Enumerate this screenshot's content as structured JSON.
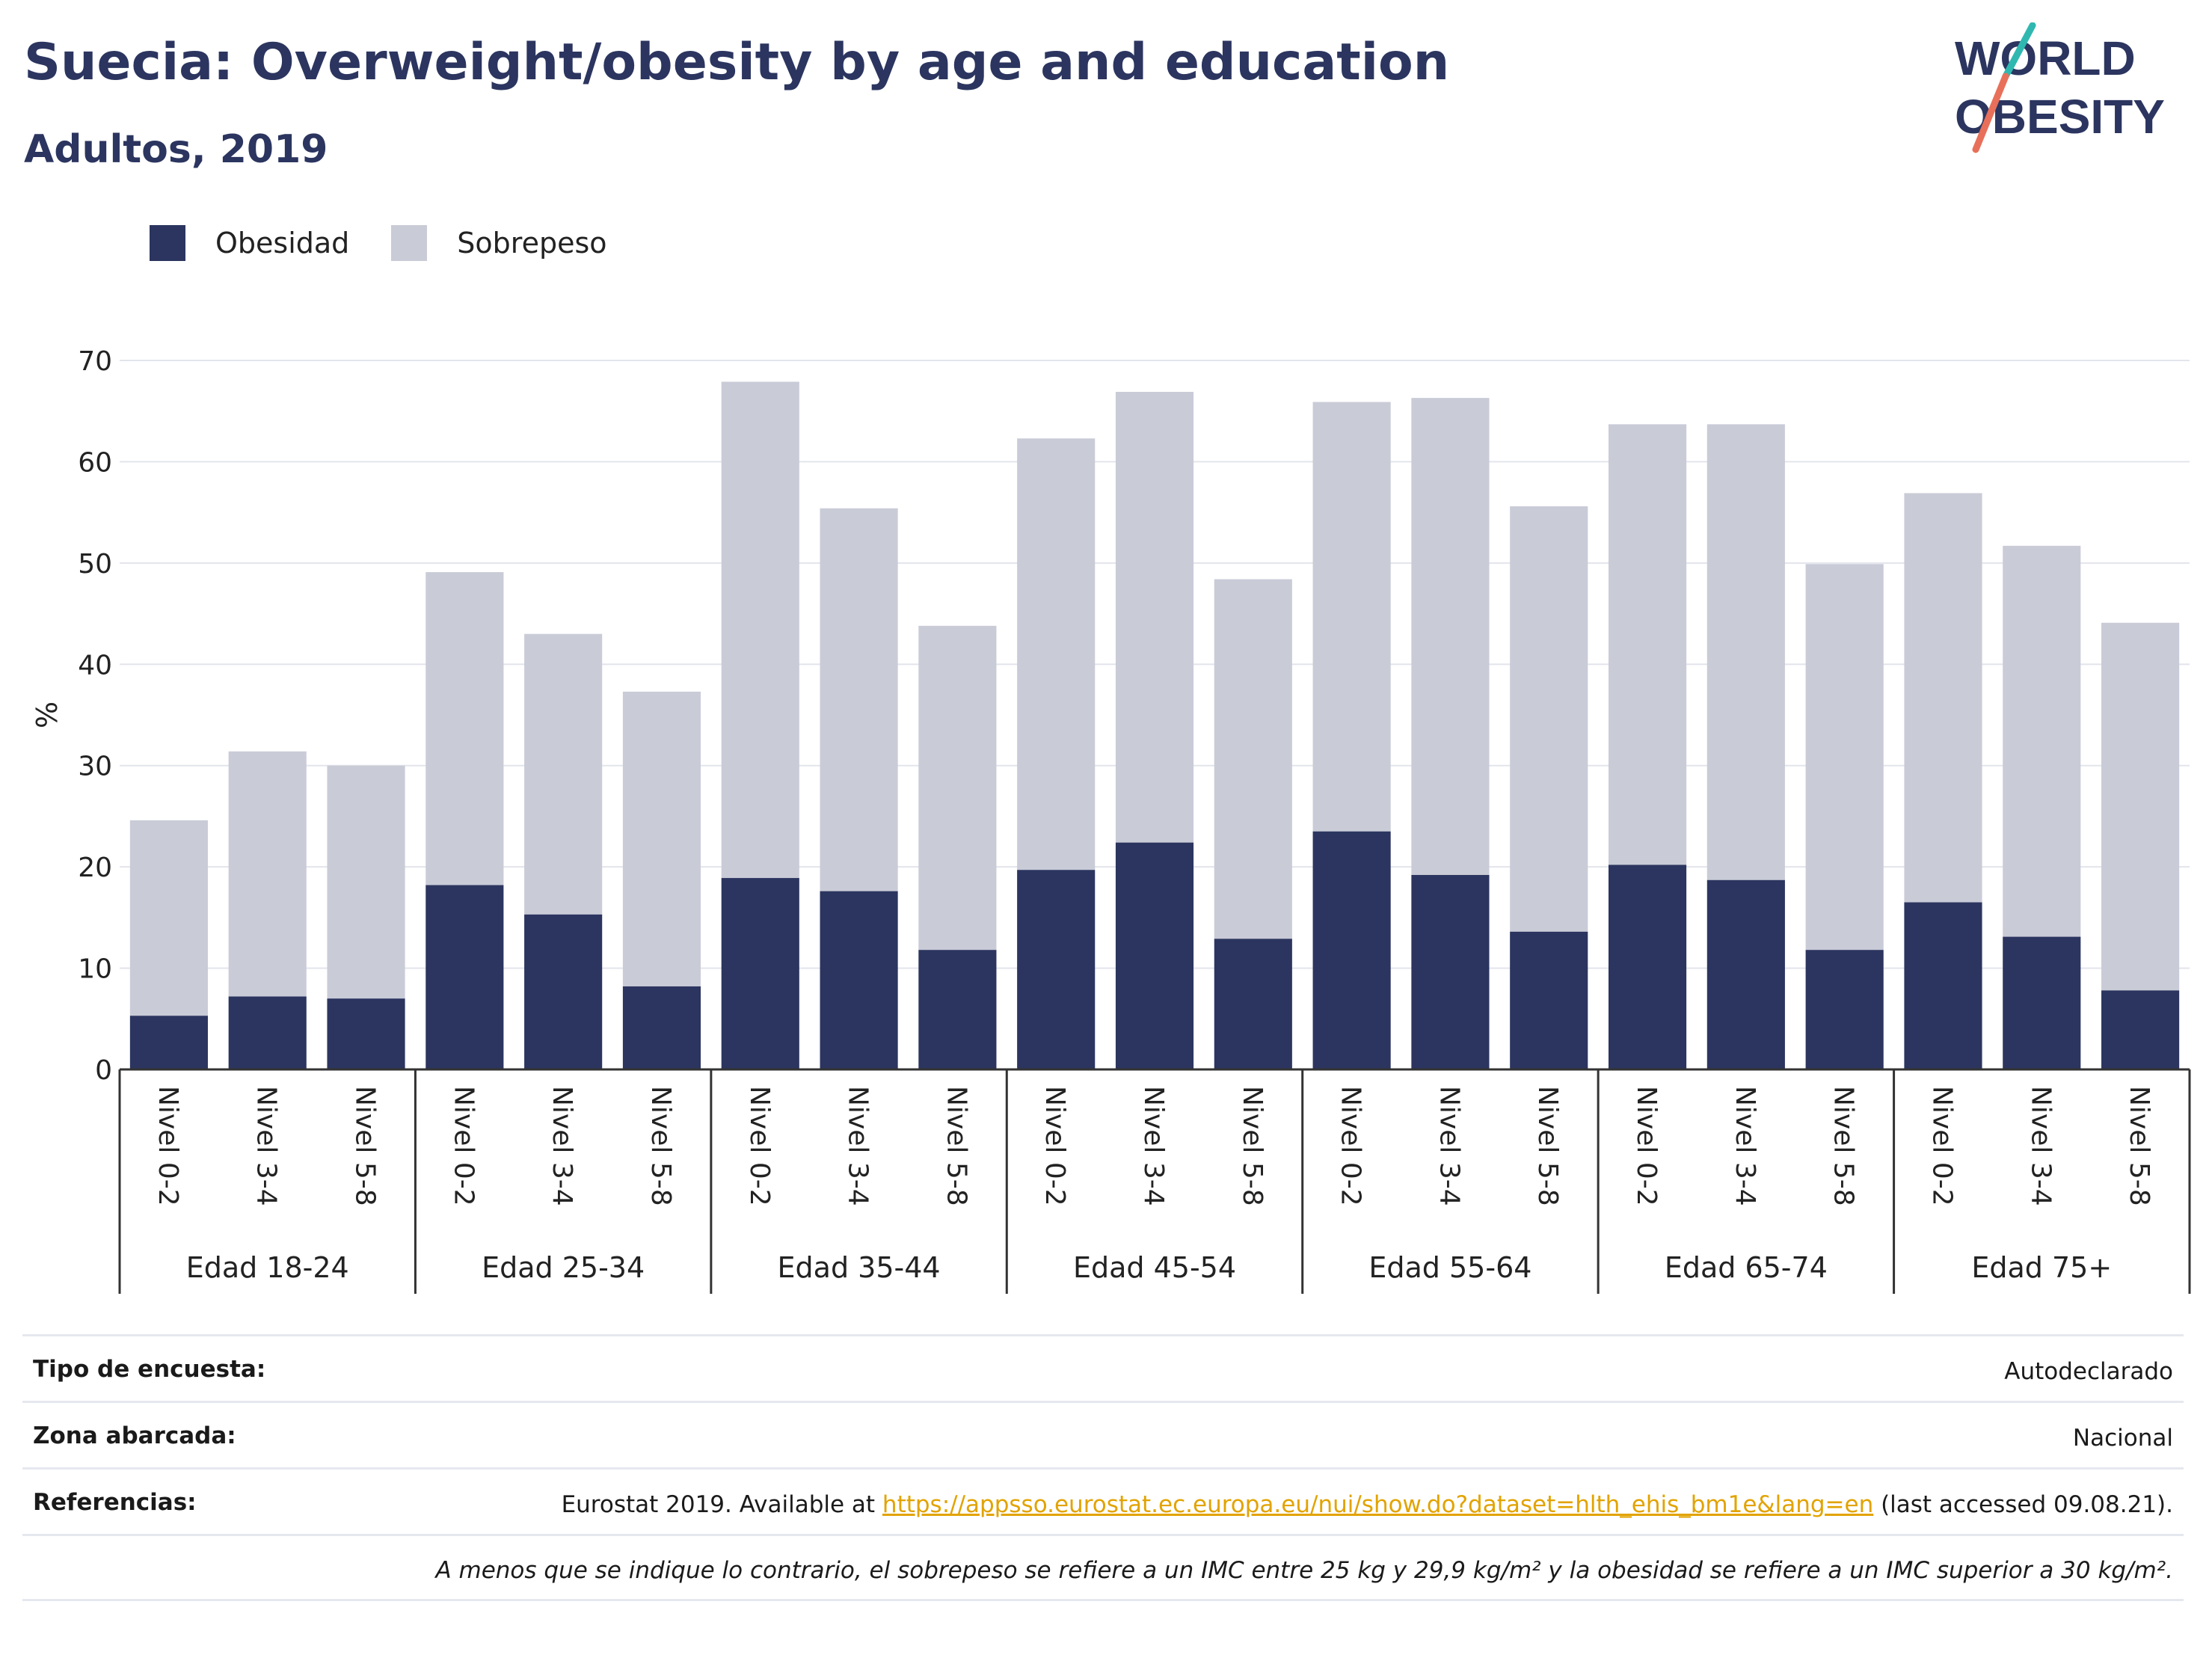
{
  "title": "Suecia: Overweight/obesity by age and education",
  "subtitle": "Adultos, 2019",
  "logo": {
    "line1": "WORLD",
    "line2": "OBESITY"
  },
  "colors": {
    "obesidad": "#2b355f",
    "sobrepeso": "#c9cbd7",
    "title": "#2b355f",
    "link": "#e2a300"
  },
  "legend": [
    {
      "label": "Obesidad",
      "color": "#2b355f"
    },
    {
      "label": "Sobrepeso",
      "color": "#c9cbd7"
    }
  ],
  "chart_data": {
    "type": "bar",
    "stacked": true,
    "ylabel": "%",
    "ylim": [
      0,
      70
    ],
    "yticks": [
      0,
      10,
      20,
      30,
      40,
      50,
      60,
      70
    ],
    "grid": true,
    "legend_position": "top-left",
    "groups": [
      "Edad 18-24",
      "Edad 25-34",
      "Edad 35-44",
      "Edad 45-54",
      "Edad 55-64",
      "Edad 65-74",
      "Edad 75+"
    ],
    "subcategories": [
      "Nivel 0-2",
      "Nivel 3-4",
      "Nivel 5-8"
    ],
    "series": [
      {
        "name": "Obesidad",
        "values": [
          5.3,
          7.2,
          7.0,
          18.2,
          15.3,
          8.2,
          18.9,
          17.6,
          11.8,
          19.7,
          22.4,
          12.9,
          23.5,
          19.2,
          13.6,
          20.2,
          18.7,
          11.8,
          16.5,
          13.1,
          7.8
        ]
      },
      {
        "name": "Sobrepeso",
        "values": [
          19.3,
          24.2,
          23.0,
          30.9,
          27.7,
          29.1,
          49.0,
          37.8,
          32.0,
          42.6,
          44.5,
          35.5,
          42.4,
          47.1,
          42.0,
          43.5,
          45.0,
          38.1,
          40.4,
          38.6,
          36.3
        ]
      }
    ]
  },
  "meta": {
    "survey_type_label": "Tipo de encuesta:",
    "survey_type_value": "Autodeclarado",
    "area_label": "Zona abarcada:",
    "area_value": "Nacional",
    "references_label": "Referencias:",
    "references_prefix": "Eurostat 2019. Available at ",
    "references_link": "https://appsso.eurostat.ec.europa.eu/nui/show.do?dataset=hlth_ehis_bm1e&lang=en",
    "references_suffix": " (last accessed 09.08.21).",
    "note": "A menos que se indique lo contrario, el sobrepeso se refiere a un IMC entre 25 kg y 29,9 kg/m² y la obesidad se refiere a un IMC superior a 30 kg/m²."
  }
}
